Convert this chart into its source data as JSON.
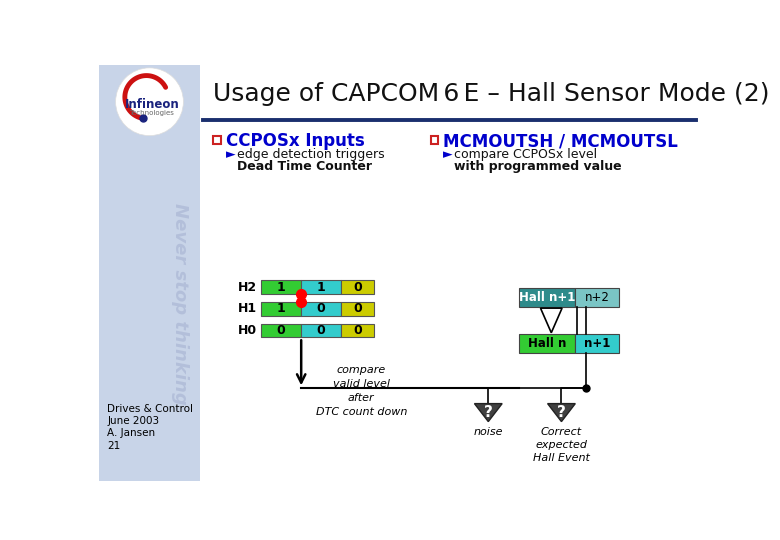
{
  "title": "Usage of CAPCOM 6 E – Hall Sensor Mode (2)",
  "bg_color": "#ffffff",
  "sidebar_color": "#c8d4e8",
  "header_line_color": "#1a2f6e",
  "bullet_color": "#0000cc",
  "green_color": "#33cc33",
  "cyan_color": "#33cccc",
  "yellow_color": "#cccc00",
  "teal_dark": "#2e8b8b",
  "teal_light": "#7ac5c5",
  "green_hall": "#33cc33",
  "cyan_hall": "#33cccc",
  "dark_tri": "#404040",
  "sidebar_text_color": "#b0bcd8",
  "bottom_text": [
    "Drives & Control",
    "June 2003",
    "A. Jansen",
    "21"
  ]
}
